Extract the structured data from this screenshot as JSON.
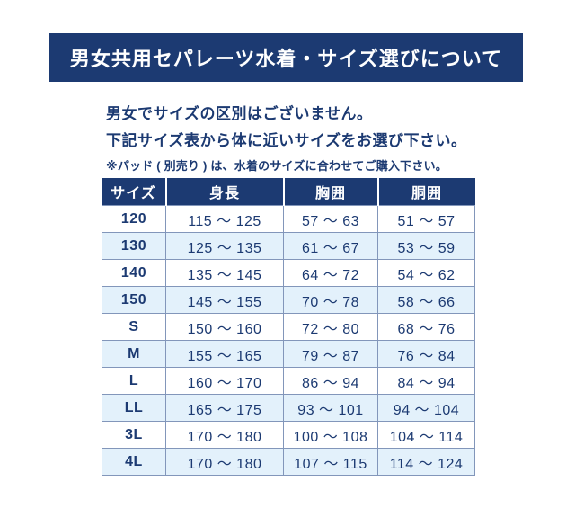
{
  "banner": {
    "title": "男女共用セパレーツ水着・サイズ選びについて",
    "bg_color": "#1c3a72",
    "text_color": "#ffffff"
  },
  "intro": {
    "line1": "男女でサイズの区別はございません。",
    "line2": "下記サイズ表から体に近いサイズをお選び下さい。",
    "note": "※パッド ( 別売り ) は、水着のサイズに合わせてご購入下さい。"
  },
  "size_table": {
    "headers": [
      "サイズ",
      "身長",
      "胸囲",
      "胴囲"
    ],
    "rows": [
      [
        "120",
        "115 ～ 125",
        "57 ～ 63",
        "51 ～ 57"
      ],
      [
        "130",
        "125 ～ 135",
        "61 ～ 67",
        "53 ～ 59"
      ],
      [
        "140",
        "135 ～ 145",
        "64 ～ 72",
        "54 ～ 62"
      ],
      [
        "150",
        "145 ～ 155",
        "70 ～ 78",
        "58 ～ 66"
      ],
      [
        "S",
        "150 ～ 160",
        "72 ～ 80",
        "68 ～ 76"
      ],
      [
        "M",
        "155 ～ 165",
        "79 ～ 87",
        "76 ～ 84"
      ],
      [
        "L",
        "160 ～ 170",
        "86 ～ 94",
        "84 ～ 94"
      ],
      [
        "LL",
        "165 ～ 175",
        "93 ～ 101",
        "94 ～ 104"
      ],
      [
        "3L",
        "170 ～ 180",
        "100 ～ 108",
        "104 ～ 114"
      ],
      [
        "4L",
        "170 ～ 180",
        "107 ～ 115",
        "114 ～ 124"
      ]
    ]
  },
  "colors": {
    "navy": "#1c3a72",
    "row_alt_blue": "#e3f1fb",
    "table_border": "#8296ba",
    "page_bg": "#ffffff"
  }
}
